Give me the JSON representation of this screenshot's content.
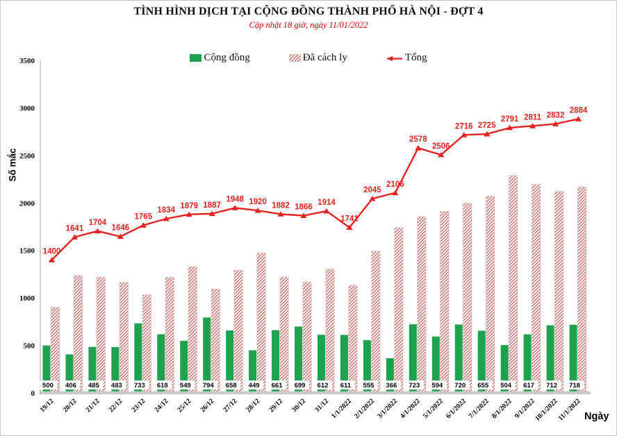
{
  "chart_data": {
    "type": "bar",
    "subtype": "grouped-bars-with-line-overlay",
    "title": "TÌNH HÌNH DỊCH TẠI CỘNG ĐỒNG THÀNH PHỐ HÀ NỘI - ĐỢT 4",
    "subtitle": "Cập nhật 18 giờ, ngày 11/01/2022",
    "categories": [
      "19/12",
      "20/12",
      "21/12",
      "22/12",
      "23/12",
      "24/12",
      "25/12",
      "26/12",
      "27/12",
      "28/12",
      "29/12",
      "30/12",
      "31/12",
      "1/1/2022",
      "2/1/2022",
      "3/1/2022",
      "4/1/2022",
      "5/1/2022",
      "6/1/2022",
      "7/1/2022",
      "8/1/2022",
      "9/1/2022",
      "10/1/2022",
      "11/1/2022"
    ],
    "series": [
      {
        "name": "Cộng đồng",
        "type": "bar",
        "color": "#1ea24e",
        "value_labels_shown": true,
        "values": [
          500,
          406,
          485,
          483,
          733,
          618,
          549,
          794,
          658,
          449,
          661,
          699,
          612,
          611,
          555,
          366,
          723,
          594,
          720,
          655,
          504,
          617,
          712,
          718
        ]
      },
      {
        "name": "Đã cách ly",
        "type": "bar",
        "fill_style": "diagonal-hatch",
        "color": "#c4635e",
        "value_labels_shown": false,
        "values": [
          900,
          1235,
          1219,
          1163,
          1032,
          1216,
          1330,
          1093,
          1290,
          1471,
          1221,
          1167,
          1302,
          1130,
          1490,
          1740,
          1855,
          1912,
          1996,
          2070,
          2287,
          2194,
          2120,
          2166
        ]
      },
      {
        "name": "Tổng",
        "type": "line",
        "color": "#e2231f",
        "marker": "triangle",
        "value_labels_shown": true,
        "values": [
          1400,
          1641,
          1704,
          1646,
          1765,
          1834,
          1879,
          1887,
          1948,
          1920,
          1882,
          1866,
          1914,
          1741,
          2045,
          2106,
          2578,
          2506,
          2716,
          2725,
          2791,
          2811,
          2832,
          2884
        ]
      }
    ],
    "xlabel": "Ngày",
    "ylabel": "Số mắc",
    "ylim": [
      0,
      3500
    ],
    "yticks": [
      0,
      500,
      1000,
      1500,
      2000,
      2500,
      3000,
      3500
    ],
    "grid": false,
    "legend_position": "top"
  }
}
